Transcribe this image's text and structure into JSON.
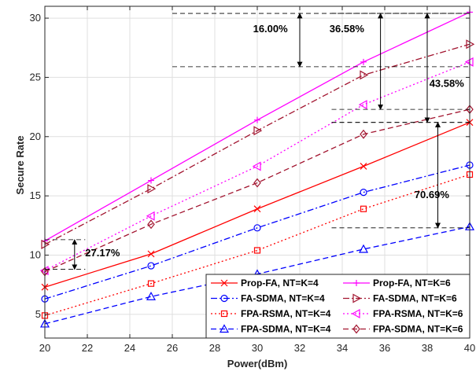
{
  "chart_data": {
    "type": "line",
    "title": "",
    "xlabel": "Power(dBm)",
    "ylabel": "Secure Rate",
    "x": [
      20,
      25,
      30,
      35,
      40
    ],
    "xlim": [
      20,
      40
    ],
    "ylim": [
      3,
      31
    ],
    "xticks": [
      20,
      22,
      24,
      26,
      28,
      30,
      32,
      34,
      36,
      38,
      40
    ],
    "yticks": [
      5,
      10,
      15,
      20,
      25,
      30
    ],
    "grid": true,
    "legend_position": "bottom-right",
    "series": [
      {
        "name": "Prop-FA, NT=K=4",
        "values": [
          7.3,
          10.1,
          13.9,
          17.5,
          21.2
        ],
        "color": "#ff0000",
        "dash": "solid",
        "marker": "x"
      },
      {
        "name": "Prop-FA, NT=K=6",
        "values": [
          11.2,
          16.3,
          21.4,
          26.3,
          30.5
        ],
        "color": "#ff00ff",
        "dash": "solid",
        "marker": "plus"
      },
      {
        "name": "FA-SDMA, NT=K=4",
        "values": [
          6.3,
          9.1,
          12.3,
          15.3,
          17.6
        ],
        "color": "#0000ff",
        "dash": "dashdot",
        "marker": "circle"
      },
      {
        "name": "FA-SDMA, NT=K=6",
        "values": [
          10.9,
          15.6,
          20.5,
          25.2,
          27.8
        ],
        "color": "#a2142f",
        "dash": "dashdot",
        "marker": "triangle-right"
      },
      {
        "name": "FPA-RSMA, NT=K=4",
        "values": [
          4.9,
          7.6,
          10.4,
          13.9,
          16.8
        ],
        "color": "#ff0000",
        "dash": "dotted",
        "marker": "square"
      },
      {
        "name": "FPA-RSMA, NT=K=6",
        "values": [
          8.7,
          13.3,
          17.5,
          22.7,
          26.3
        ],
        "color": "#ff00ff",
        "dash": "dotted",
        "marker": "triangle-left"
      },
      {
        "name": "FPA-SDMA, NT=K=4",
        "values": [
          4.2,
          6.5,
          8.4,
          10.5,
          12.4
        ],
        "color": "#0000ff",
        "dash": "dashed",
        "marker": "triangle-up"
      },
      {
        "name": "FPA-SDMA, NT=K=6",
        "values": [
          8.6,
          12.6,
          16.1,
          20.2,
          22.3
        ],
        "color": "#a2142f",
        "dash": "dashed",
        "marker": "diamond"
      }
    ],
    "annotations": [
      {
        "label": "16.00%",
        "arrow_x": 32,
        "y_from": 25.9,
        "y_to": 30.4,
        "text_x": 29.8,
        "text_y": 28.8,
        "ref_from_x": 26,
        "ref_to_x": 40
      },
      {
        "label": "36.58%",
        "arrow_x": 35.8,
        "y_from": 22.3,
        "y_to": 30.4,
        "text_x": 33.4,
        "text_y": 28.8,
        "ref_from_x": 33.5,
        "ref_to_x": 40
      },
      {
        "label": "43.58%",
        "arrow_x": 38,
        "y_from": 21.2,
        "y_to": 30.4,
        "text_x": 38.1,
        "text_y": 24.2,
        "ref_from_x": 33.5,
        "ref_to_x": 40
      },
      {
        "label": "70.69%",
        "arrow_x": 38.5,
        "y_from": 12.3,
        "y_to": 21.2,
        "text_x": 37.4,
        "text_y": 14.8,
        "ref_from_x": 33.5,
        "ref_to_x": 40
      },
      {
        "label": "27.17%",
        "arrow_x": 21.4,
        "y_from": 8.8,
        "y_to": 11.3,
        "text_x": 21.9,
        "text_y": 9.9,
        "ref_from_x": 20,
        "ref_to_x": 21.9
      }
    ]
  }
}
